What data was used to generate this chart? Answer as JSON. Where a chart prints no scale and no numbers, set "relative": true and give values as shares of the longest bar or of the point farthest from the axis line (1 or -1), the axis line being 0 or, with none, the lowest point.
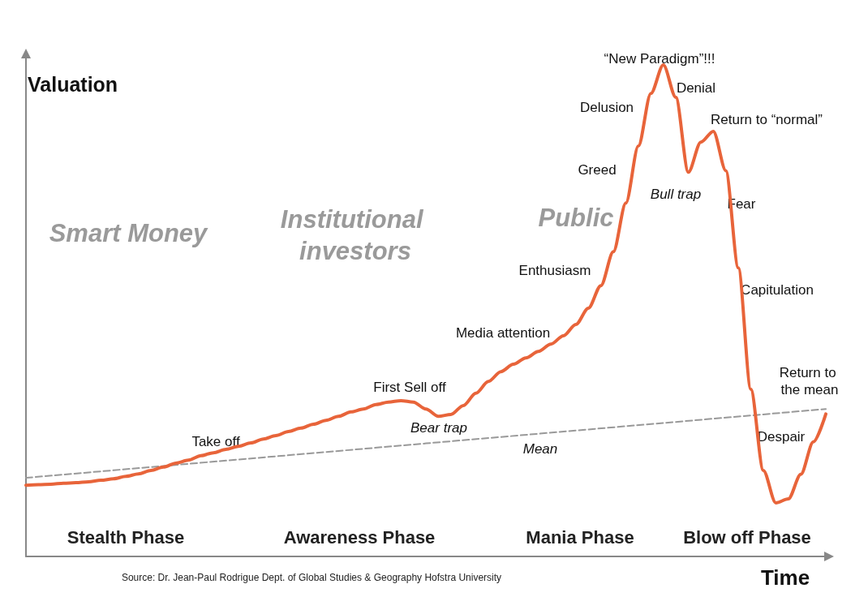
{
  "chart_data": {
    "type": "line",
    "xlabel": "Time",
    "ylabel": "Valuation",
    "relative": true,
    "grid": false,
    "marker": "none",
    "line_style": "solid",
    "categories": [
      null,
      null,
      null,
      null,
      null,
      null,
      null,
      null,
      null,
      null,
      null,
      null,
      null,
      null,
      null,
      null,
      null,
      null,
      null,
      null,
      null,
      null,
      null,
      null,
      null,
      null,
      null,
      null,
      null,
      null,
      null,
      null,
      null,
      null,
      null,
      null,
      null,
      null,
      null,
      null,
      null,
      null,
      null,
      null,
      null,
      null,
      null,
      null,
      null,
      null,
      null,
      null,
      null,
      null,
      null,
      null,
      null,
      null,
      null,
      null,
      null,
      null,
      null,
      null,
      null
    ],
    "series": [
      {
        "color": "#e8643a",
        "values": [
          0.145,
          0.146,
          0.147,
          0.149,
          0.15,
          0.152,
          0.155,
          0.158,
          0.163,
          0.168,
          0.175,
          0.182,
          0.19,
          0.196,
          0.205,
          0.211,
          0.218,
          0.224,
          0.231,
          0.239,
          0.246,
          0.254,
          0.261,
          0.269,
          0.277,
          0.285,
          0.294,
          0.3,
          0.309,
          0.314,
          0.317,
          0.314,
          0.3,
          0.285,
          0.289,
          0.307,
          0.332,
          0.356,
          0.376,
          0.391,
          0.404,
          0.417,
          0.432,
          0.449,
          0.472,
          0.505,
          0.551,
          0.62,
          0.719,
          0.835,
          0.942,
          1,
          0.934,
          0.782,
          0.843,
          0.865,
          0.785,
          0.587,
          0.34,
          0.175,
          0.109,
          0.117,
          0.167,
          0.233,
          0.29
        ]
      },
      {
        "color": "#999999",
        "line_style": "dashed",
        "values": [
          0.16,
          null,
          null,
          null,
          null,
          null,
          null,
          null,
          null,
          null,
          null,
          null,
          null,
          null,
          null,
          null,
          null,
          null,
          null,
          null,
          null,
          null,
          null,
          null,
          null,
          null,
          null,
          null,
          null,
          null,
          null,
          null,
          null,
          null,
          null,
          null,
          null,
          null,
          null,
          null,
          null,
          null,
          null,
          null,
          null,
          null,
          null,
          null,
          null,
          null,
          null,
          null,
          null,
          null,
          null,
          null,
          null,
          null,
          null,
          null,
          null,
          null,
          null,
          null,
          0.3
        ]
      }
    ],
    "annotations": [
      "Smart Money",
      "Institutional investors",
      "Public",
      "Stealth Phase",
      "Awareness Phase",
      "Mania Phase",
      "Blow off Phase",
      "Take off",
      "First Sell off",
      "Bear trap",
      "Media attention",
      "Enthusiasm",
      "Greed",
      "Delusion",
      "“New Paradigm”!!!",
      "Denial",
      "Bull trap",
      "Return to “normal”",
      "Fear",
      "Capitulation",
      "Despair",
      "Return to the mean",
      "Mean",
      "Source: Dr. Jean-Paul Rodrigue Dept. of Global Studies & Geography Hofstra University"
    ]
  }
}
